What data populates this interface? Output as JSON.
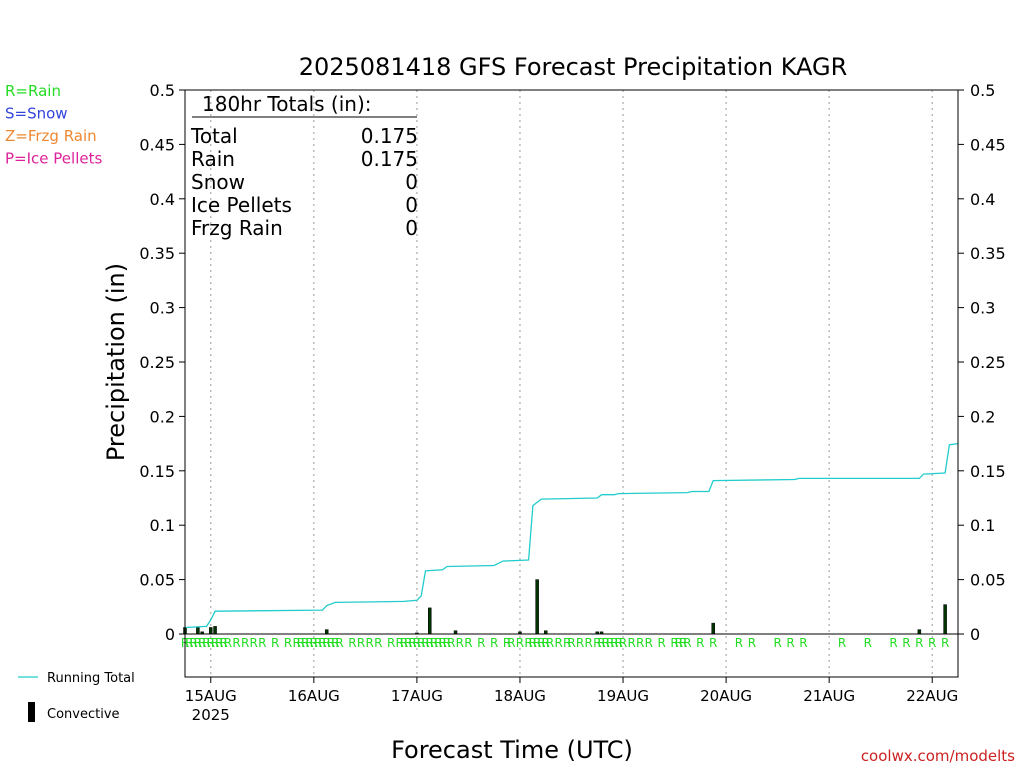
{
  "chart_data": {
    "type": "bar",
    "title": "2025081418 GFS Forecast Precipitation KAGR",
    "xlabel": "Forecast Time (UTC)",
    "ylabel": "Precipitation (in)",
    "ylim": [
      0,
      0.5
    ],
    "yticks": [
      "0",
      "0.05",
      "0.1",
      "0.15",
      "0.2",
      "0.25",
      "0.3",
      "0.35",
      "0.4",
      "0.45",
      "0.5"
    ],
    "xlim_hours": [
      0,
      180
    ],
    "xticks": [
      {
        "label": "15AUG",
        "hour": 6
      },
      {
        "label": "16AUG",
        "hour": 30
      },
      {
        "label": "17AUG",
        "hour": 54
      },
      {
        "label": "18AUG",
        "hour": 78
      },
      {
        "label": "19AUG",
        "hour": 102
      },
      {
        "label": "20AUG",
        "hour": 126
      },
      {
        "label": "21AUG",
        "hour": 150
      },
      {
        "label": "22AUG",
        "hour": 174
      }
    ],
    "year_label": "2025",
    "grid": "vertical dotted at each day",
    "totals_box": {
      "header": "180hr Totals (in):",
      "rows": [
        {
          "label": "Total",
          "value": "0.175"
        },
        {
          "label": "Rain",
          "value": "0.175"
        },
        {
          "label": "Snow",
          "value": "0"
        },
        {
          "label": "Ice Pellets",
          "value": "0"
        },
        {
          "label": "Frzg Rain",
          "value": "0"
        }
      ]
    },
    "precip_type_legend": [
      {
        "text": "R=Rain",
        "color": "#22dd22"
      },
      {
        "text": "S=Snow",
        "color": "#3344dd"
      },
      {
        "text": "Z=Frzg Rain",
        "color": "#ee8833"
      },
      {
        "text": "P=Ice Pellets",
        "color": "#dd2299"
      }
    ],
    "series_legend": [
      {
        "name": "Running Total",
        "color": "#22cccc",
        "kind": "line"
      },
      {
        "name": "Convective",
        "color": "#000000",
        "kind": "bar"
      }
    ],
    "series": [
      {
        "name": "Precipitation",
        "color": "#006600",
        "points": [
          [
            0,
            0.006
          ],
          [
            3,
            0.006
          ],
          [
            4,
            0.002
          ],
          [
            6,
            0.006
          ],
          [
            7,
            0.007
          ],
          [
            33,
            0.004
          ],
          [
            54,
            0.001
          ],
          [
            57,
            0.024
          ],
          [
            63,
            0.003
          ],
          [
            78,
            0.002
          ],
          [
            82,
            0.05
          ],
          [
            84,
            0.003
          ],
          [
            96,
            0.002
          ],
          [
            97,
            0.002
          ],
          [
            123,
            0.01
          ],
          [
            171,
            0.004
          ],
          [
            177,
            0.027
          ]
        ]
      },
      {
        "name": "Running Total",
        "color": "#22cccc",
        "points": [
          [
            0,
            0.006
          ],
          [
            5,
            0.007
          ],
          [
            6,
            0.013
          ],
          [
            7,
            0.021
          ],
          [
            32,
            0.022
          ],
          [
            33,
            0.026
          ],
          [
            35,
            0.029
          ],
          [
            51,
            0.03
          ],
          [
            54,
            0.031
          ],
          [
            55,
            0.035
          ],
          [
            56,
            0.058
          ],
          [
            60,
            0.059
          ],
          [
            61,
            0.062
          ],
          [
            72,
            0.063
          ],
          [
            74,
            0.067
          ],
          [
            80,
            0.068
          ],
          [
            81,
            0.118
          ],
          [
            82,
            0.121
          ],
          [
            83,
            0.124
          ],
          [
            96,
            0.125
          ],
          [
            97,
            0.128
          ],
          [
            100,
            0.128
          ],
          [
            101,
            0.129
          ],
          [
            117,
            0.13
          ],
          [
            118,
            0.131
          ],
          [
            122,
            0.131
          ],
          [
            123,
            0.141
          ],
          [
            142,
            0.142
          ],
          [
            143,
            0.143
          ],
          [
            171,
            0.143
          ],
          [
            172,
            0.147
          ],
          [
            177,
            0.148
          ],
          [
            178,
            0.174
          ],
          [
            180,
            0.175
          ]
        ]
      }
    ],
    "precip_type_markers": {
      "symbol": "R",
      "color": "#22dd22",
      "hours": [
        0,
        1,
        2,
        3,
        4,
        5,
        6,
        7,
        8,
        9,
        10,
        12,
        14,
        16,
        18,
        21,
        24,
        26,
        27,
        28,
        29,
        30,
        31,
        32,
        33,
        34,
        35,
        36,
        39,
        41,
        43,
        45,
        48,
        50,
        51,
        52,
        53,
        54,
        55,
        56,
        57,
        58,
        59,
        60,
        61,
        62,
        64,
        66,
        69,
        72,
        75,
        76,
        78,
        80,
        81,
        82,
        83,
        84,
        85,
        87,
        89,
        90,
        92,
        94,
        96,
        97,
        98,
        99,
        100,
        101,
        102,
        104,
        106,
        108,
        111,
        114,
        115,
        116,
        117,
        120,
        123,
        129,
        132,
        138,
        141,
        144,
        153,
        159,
        165,
        168,
        171,
        174,
        177
      ]
    },
    "credit": "coolwx.com/modelts"
  }
}
